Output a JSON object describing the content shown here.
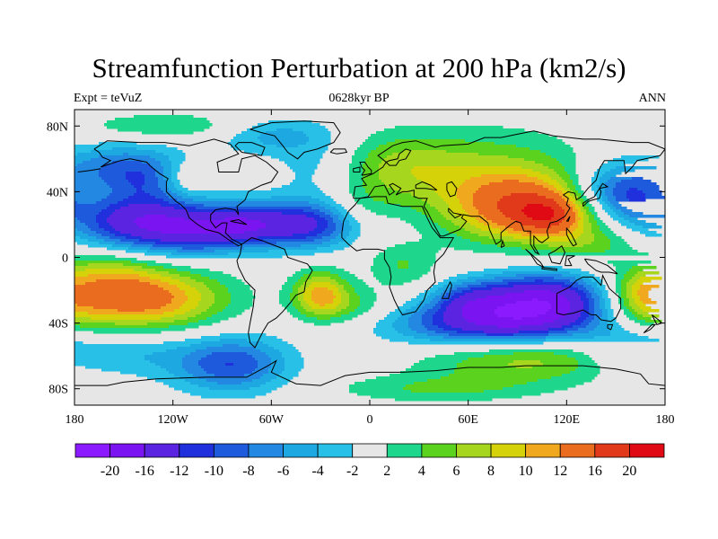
{
  "title": "Streamfunction Perturbation at 200 hPa (km2/s)",
  "left_label": "Expt = teVuZ",
  "center_label": "0628kyr BP",
  "right_label": "ANN",
  "map": {
    "projection": "cylindrical equidistant",
    "lon_range": [
      -180,
      180
    ],
    "lat_range": [
      -90,
      90
    ],
    "background_color": "#e6e6e6",
    "coastlines": true,
    "lon_ticks": [
      {
        "value": -180,
        "label": "180"
      },
      {
        "value": -120,
        "label": "120W"
      },
      {
        "value": -60,
        "label": "60W"
      },
      {
        "value": 0,
        "label": "0"
      },
      {
        "value": 60,
        "label": "60E"
      },
      {
        "value": 120,
        "label": "120E"
      },
      {
        "value": 180,
        "label": "180"
      }
    ],
    "lat_ticks": [
      {
        "value": 80,
        "label": "80N"
      },
      {
        "value": 40,
        "label": "40N"
      },
      {
        "value": 0,
        "label": "0"
      },
      {
        "value": -40,
        "label": "40S"
      },
      {
        "value": -80,
        "label": "80S"
      }
    ]
  },
  "colorbar": {
    "colors": [
      "#8c1aff",
      "#7a14f0",
      "#5a24e0",
      "#2030dc",
      "#1e5adc",
      "#2288e2",
      "#1ea8e2",
      "#28c0e6",
      "#e6e6e6",
      "#1ed68c",
      "#5ad21e",
      "#a6d61e",
      "#d6d20a",
      "#f0a81e",
      "#ea6c1e",
      "#e03a1a",
      "#e00a14"
    ],
    "labels": [
      "-20",
      "-16",
      "-12",
      "-10",
      "-8",
      "-6",
      "-4",
      "-2",
      "2",
      "4",
      "6",
      "8",
      "10",
      "12",
      "16",
      "20"
    ]
  },
  "field_levels": [
    -20,
    -16,
    -12,
    -10,
    -8,
    -6,
    -4,
    -2,
    2,
    4,
    6,
    8,
    10,
    12,
    16,
    20
  ],
  "field_anomalies": [
    {
      "lon": -140,
      "lat": 22,
      "amp": -15,
      "rx": 28,
      "ry": 12
    },
    {
      "lon": -105,
      "lat": 15,
      "amp": -8,
      "rx": 20,
      "ry": 10
    },
    {
      "lon": -80,
      "lat": 20,
      "amp": -6,
      "rx": 15,
      "ry": 8
    },
    {
      "lon": -150,
      "lat": 55,
      "amp": -8,
      "rx": 30,
      "ry": 10
    },
    {
      "lon": -130,
      "lat": 45,
      "amp": -4,
      "rx": 20,
      "ry": 8
    },
    {
      "lon": -120,
      "lat": 80,
      "amp": 4,
      "rx": 40,
      "ry": 6
    },
    {
      "lon": -112,
      "lat": 48,
      "amp": 6,
      "rx": 12,
      "ry": 8
    },
    {
      "lon": -45,
      "lat": 20,
      "amp": -14,
      "rx": 30,
      "ry": 10
    },
    {
      "lon": -30,
      "lat": 55,
      "amp": -4,
      "rx": 20,
      "ry": 15
    },
    {
      "lon": -60,
      "lat": 75,
      "amp": -5,
      "rx": 25,
      "ry": 8
    },
    {
      "lon": 15,
      "lat": 55,
      "amp": 6,
      "rx": 32,
      "ry": 15
    },
    {
      "lon": -5,
      "lat": 25,
      "amp": 4,
      "rx": 15,
      "ry": 12
    },
    {
      "lon": 80,
      "lat": 45,
      "amp": 6,
      "rx": 40,
      "ry": 22
    },
    {
      "lon": 95,
      "lat": 30,
      "amp": 12,
      "rx": 30,
      "ry": 14
    },
    {
      "lon": 110,
      "lat": 25,
      "amp": 8,
      "rx": 15,
      "ry": 8
    },
    {
      "lon": 145,
      "lat": 40,
      "amp": -8,
      "rx": 18,
      "ry": 12
    },
    {
      "lon": 165,
      "lat": 35,
      "amp": -6,
      "rx": 15,
      "ry": 12
    },
    {
      "lon": 135,
      "lat": 8,
      "amp": 4,
      "rx": 20,
      "ry": 8
    },
    {
      "lon": -140,
      "lat": -25,
      "amp": 14,
      "rx": 35,
      "ry": 13
    },
    {
      "lon": -160,
      "lat": -8,
      "amp": 4,
      "rx": 20,
      "ry": 10
    },
    {
      "lon": 170,
      "lat": -30,
      "amp": 5,
      "rx": 20,
      "ry": 15
    },
    {
      "lon": -150,
      "lat": -58,
      "amp": -4,
      "rx": 25,
      "ry": 10
    },
    {
      "lon": -85,
      "lat": -65,
      "amp": -10,
      "rx": 25,
      "ry": 12
    },
    {
      "lon": -30,
      "lat": -22,
      "amp": 10,
      "rx": 12,
      "ry": 10
    },
    {
      "lon": -10,
      "lat": -30,
      "amp": 4,
      "rx": 20,
      "ry": 8
    },
    {
      "lon": 20,
      "lat": -5,
      "amp": 4,
      "rx": 15,
      "ry": 10
    },
    {
      "lon": 75,
      "lat": -40,
      "amp": -14,
      "rx": 42,
      "ry": 10
    },
    {
      "lon": 105,
      "lat": -25,
      "amp": -16,
      "rx": 28,
      "ry": 11
    },
    {
      "lon": 60,
      "lat": -25,
      "amp": -6,
      "rx": 15,
      "ry": 8
    },
    {
      "lon": 95,
      "lat": -62,
      "amp": 7,
      "rx": 45,
      "ry": 10
    },
    {
      "lon": 40,
      "lat": -80,
      "amp": 4,
      "rx": 45,
      "ry": 6
    },
    {
      "lon": 160,
      "lat": -55,
      "amp": -6,
      "rx": 20,
      "ry": 10
    },
    {
      "lon": 165,
      "lat": -20,
      "amp": 4,
      "rx": 12,
      "ry": 10
    }
  ]
}
